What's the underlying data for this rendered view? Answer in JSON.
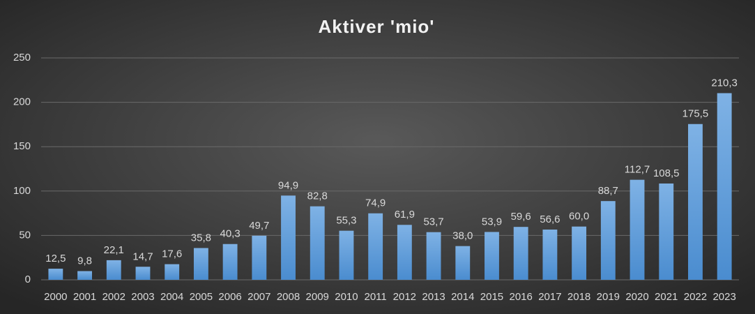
{
  "chart_data": {
    "type": "bar",
    "title": "Aktiver 'mio'",
    "categories": [
      "2000",
      "2001",
      "2002",
      "2003",
      "2004",
      "2005",
      "2006",
      "2007",
      "2008",
      "2009",
      "2010",
      "2011",
      "2012",
      "2013",
      "2014",
      "2015",
      "2016",
      "2017",
      "2018",
      "2019",
      "2020",
      "2021",
      "2022",
      "2023"
    ],
    "values": [
      12.5,
      9.8,
      22.1,
      14.7,
      17.6,
      35.8,
      40.3,
      49.7,
      94.9,
      82.8,
      55.3,
      74.9,
      61.9,
      53.7,
      38.0,
      53.9,
      59.6,
      56.6,
      60.0,
      88.7,
      112.7,
      108.5,
      175.5,
      210.3
    ],
    "value_labels": [
      "12,5",
      "9,8",
      "22,1",
      "14,7",
      "17,6",
      "35,8",
      "40,3",
      "49,7",
      "94,9",
      "82,8",
      "55,3",
      "74,9",
      "61,9",
      "53,7",
      "38,0",
      "53,9",
      "59,6",
      "56,6",
      "60,0",
      "88,7",
      "112,7",
      "108,5",
      "175,5",
      "210,3"
    ],
    "color": "#5b9bd5",
    "ylim": [
      0,
      250
    ],
    "yticks": [
      0,
      50,
      100,
      150,
      200,
      250
    ],
    "grid": true
  }
}
